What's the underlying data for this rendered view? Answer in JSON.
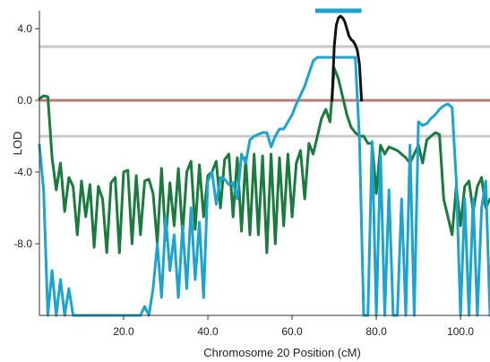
{
  "chart_data": {
    "type": "line",
    "xlabel": "Chromosome 20 Position (cM)",
    "ylabel": "LOD",
    "xlim": [
      0,
      107
    ],
    "ylim": [
      -12,
      5
    ],
    "x_ticks": [
      {
        "value": 20,
        "label": "20.0"
      },
      {
        "value": 40,
        "label": "40.0"
      },
      {
        "value": 60,
        "label": "60.0"
      },
      {
        "value": 80,
        "label": "80.0"
      },
      {
        "value": 100,
        "label": "100.0"
      }
    ],
    "y_ticks": [
      {
        "value": 4,
        "label": "4.0"
      },
      {
        "value": 0,
        "label": "0.0"
      },
      {
        "value": -4,
        "label": "-4.0"
      },
      {
        "value": -8,
        "label": "-8.0"
      }
    ],
    "reference_lines": [
      {
        "y": 3,
        "color": "#c8c8c8"
      },
      {
        "y": 0,
        "color": "#b87a76"
      },
      {
        "y": -2,
        "color": "#c8c8c8"
      }
    ],
    "support_interval": {
      "x_start": 65.5,
      "x_end": 76.5,
      "y": 5,
      "color": "#1ca3cf"
    },
    "series": [
      {
        "color": "#1b7a3d",
        "x": [
          0,
          1,
          2,
          2.5,
          3,
          4,
          5,
          6,
          7,
          8,
          9,
          10,
          11,
          12,
          13,
          14,
          15,
          16,
          17,
          18,
          19,
          20,
          21,
          22,
          23,
          24,
          25,
          26,
          27,
          28,
          29,
          30,
          31,
          32,
          33,
          34,
          35,
          36,
          37,
          38,
          39,
          40,
          41,
          42,
          43,
          44,
          45,
          46,
          47,
          48,
          49,
          50,
          51,
          52,
          53,
          54,
          55,
          56,
          57,
          58,
          59,
          60,
          61,
          62,
          63,
          64,
          65,
          66,
          67,
          68,
          69,
          70,
          71,
          72,
          73,
          74,
          75,
          76,
          77,
          78,
          79,
          80,
          81,
          82,
          83,
          84,
          85,
          86,
          87,
          88,
          89,
          90,
          91,
          92,
          93,
          94,
          95,
          96,
          97,
          98,
          99,
          100,
          101,
          102,
          103,
          104,
          105,
          106,
          107
        ],
        "y": [
          0.1,
          0.25,
          0.2,
          -1.5,
          -3.2,
          -5.0,
          -3.5,
          -6.2,
          -4.3,
          -4.8,
          -7.5,
          -4.5,
          -6.5,
          -4.7,
          -8.2,
          -4.8,
          -5.5,
          -8.5,
          -4.6,
          -4.3,
          -8.5,
          -4.0,
          -3.9,
          -8.0,
          -4.2,
          -7.5,
          -4.5,
          -4.4,
          -5.2,
          -8.0,
          -3.8,
          -7.8,
          -4.6,
          -7.0,
          -3.8,
          -7.5,
          -4.0,
          -3.4,
          -7.2,
          -3.6,
          -6.5,
          -4.2,
          -4.0,
          -3.4,
          -6.0,
          -3.3,
          -3.0,
          -6.5,
          -3.2,
          -7.3,
          -3.2,
          -7.5,
          -3.0,
          -7.5,
          -3.1,
          -8.5,
          -3.0,
          -8.0,
          -3.2,
          -7.0,
          -3.0,
          -6.5,
          -3.5,
          -2.8,
          -5.5,
          -2.4,
          -3.0,
          -2.0,
          -1.0,
          -0.5,
          -1.2,
          1.8,
          1.2,
          0.2,
          -0.8,
          -1.5,
          -1.8,
          -2.0,
          -2.0,
          -2.4,
          -2.4,
          -5.2,
          -2.5,
          -3.0,
          -2.6,
          -2.7,
          -2.8,
          -3.0,
          -3.2,
          -3.5,
          -3.0,
          -2.5,
          -3.5,
          -2.2,
          -2.0,
          -1.8,
          -1.9,
          -5.5,
          -6.5,
          -7.5,
          -4.8,
          -7.0,
          -4.8,
          -4.5,
          -6.2,
          -4.8,
          -4.3,
          -6.0,
          -5.5
        ]
      },
      {
        "color": "#1ca3cf",
        "x": [
          0,
          1,
          2,
          3,
          4,
          5,
          6,
          7,
          8,
          9,
          10,
          11,
          12,
          13,
          14,
          15,
          16,
          17,
          18,
          19,
          20,
          21,
          22,
          23,
          24,
          25,
          26,
          27,
          28,
          29,
          30,
          31,
          32,
          33,
          34,
          35,
          36,
          37,
          38,
          39,
          40,
          41,
          42,
          43,
          44,
          45,
          46,
          47,
          48,
          49,
          50,
          51,
          52,
          53,
          54,
          55,
          56,
          57,
          58,
          59,
          60,
          61,
          62,
          63,
          64,
          65,
          66,
          67,
          68,
          69,
          70,
          71,
          72,
          73,
          74,
          75,
          76,
          77,
          78,
          79,
          80,
          81,
          82,
          83,
          84,
          85,
          86,
          87,
          88,
          89,
          90,
          91,
          92,
          93,
          94,
          95,
          96,
          97,
          98,
          99,
          100,
          101,
          102,
          103,
          104,
          105,
          106,
          107
        ],
        "y": [
          -2.5,
          -5.0,
          -12,
          -9.5,
          -12,
          -10.0,
          -12,
          -10.5,
          -12,
          -12,
          -12,
          -12,
          -12,
          -12,
          -12,
          -12,
          -12,
          -12,
          -12,
          -12,
          -12,
          -12,
          -12,
          -12,
          -12,
          -11.5,
          -12,
          -10.5,
          -8.0,
          -11,
          -6.5,
          -9.5,
          -7.5,
          -11,
          -7.0,
          -10.5,
          -6.0,
          -10,
          -6.8,
          -11,
          -4.5,
          -4.0,
          -5.8,
          -4.3,
          -4.4,
          -4.7,
          -4.6,
          -5.5,
          -3.0,
          -3.5,
          -2.2,
          -2.0,
          -1.9,
          -1.8,
          -1.8,
          -2.6,
          -2.0,
          -1.6,
          -1.6,
          -1.2,
          -0.8,
          -0.2,
          0.3,
          0.8,
          1.5,
          2.2,
          2.4,
          2.4,
          2.4,
          2.4,
          2.4,
          2.4,
          2.4,
          2.4,
          2.4,
          2.4,
          -2.2,
          -12,
          -12,
          -2.3,
          -12,
          -3.0,
          -12,
          -5.0,
          -12,
          -12,
          -5.5,
          -12,
          -2.5,
          -12,
          -1.2,
          -1.4,
          -1.3,
          -1.0,
          -0.8,
          -0.5,
          -0.3,
          -0.2,
          -0.4,
          -4.5,
          -12,
          -5.5,
          -12,
          -5.5,
          -12,
          -6.0,
          -4.5,
          -12
        ]
      },
      {
        "color": "#111111",
        "x": [
          69.5,
          70,
          70.5,
          71,
          71.5,
          72,
          72.5,
          73,
          73.5,
          74,
          74.5,
          75,
          75.5,
          76,
          76.5
        ],
        "y": [
          0,
          3.0,
          4.2,
          4.6,
          4.7,
          4.6,
          4.4,
          4.0,
          3.6,
          3.4,
          3.3,
          3.1,
          2.8,
          2.0,
          0
        ]
      }
    ]
  }
}
